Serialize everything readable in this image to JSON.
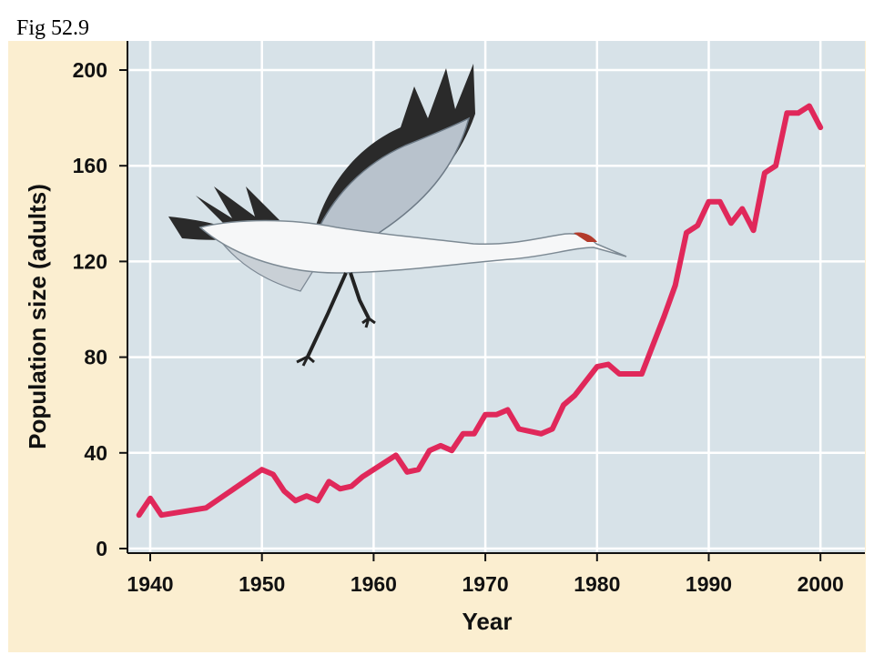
{
  "figure_label": "Fig 52.9",
  "colors": {
    "panel_bg": "#fbeed0",
    "plot_bg": "#d7e2e8",
    "grid": "#ffffff",
    "line": "#e0285a",
    "axis": "#111111"
  },
  "illustration": "whooping-crane-in-flight",
  "chart_data": {
    "type": "line",
    "title": "",
    "xlabel": "Year",
    "ylabel": "Population size (adults)",
    "xlim": [
      1939,
      2004
    ],
    "ylim": [
      0,
      205
    ],
    "xticks": [
      1940,
      1950,
      1960,
      1970,
      1980,
      1990,
      2000
    ],
    "yticks": [
      0,
      40,
      80,
      120,
      160,
      200
    ],
    "grid": true,
    "series": [
      {
        "x": [
          1939,
          1940,
          1941,
          1945,
          1950,
          1951,
          1952,
          1953,
          1954,
          1955,
          1956,
          1957,
          1958,
          1959,
          1962,
          1963,
          1964,
          1965,
          1966,
          1967,
          1968,
          1969,
          1970,
          1971,
          1972,
          1973,
          1975,
          1976,
          1977,
          1978,
          1979,
          1980,
          1981,
          1982,
          1984,
          1985,
          1986,
          1987,
          1988,
          1989,
          1990,
          1991,
          1992,
          1993,
          1994,
          1995,
          1996,
          1997,
          1998,
          1999,
          2000
        ],
        "values": [
          14,
          21,
          14,
          17,
          33,
          31,
          24,
          20,
          22,
          20,
          28,
          25,
          26,
          30,
          39,
          32,
          33,
          41,
          43,
          41,
          48,
          48,
          56,
          56,
          58,
          50,
          48,
          50,
          60,
          64,
          70,
          76,
          77,
          73,
          73,
          85,
          97,
          110,
          132,
          135,
          145,
          145,
          136,
          142,
          133,
          157,
          160,
          182,
          182,
          185,
          176
        ]
      }
    ]
  }
}
